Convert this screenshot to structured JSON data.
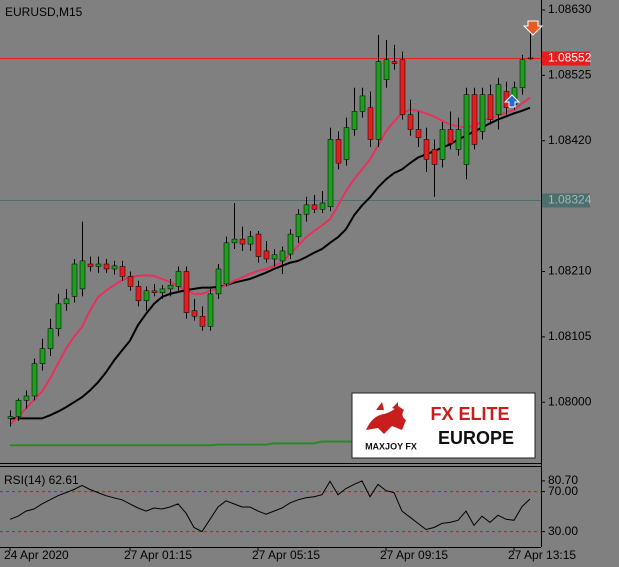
{
  "chart_data": [
    {
      "type": "candlestick",
      "title": "EURUSD,M15",
      "categories": [
        "24 Apr 2020",
        null,
        null,
        null,
        null,
        null,
        null,
        null,
        null,
        null,
        null,
        null,
        null,
        null,
        null,
        "27 Apr 01:15",
        null,
        null,
        null,
        null,
        null,
        null,
        null,
        null,
        null,
        null,
        null,
        null,
        null,
        null,
        null,
        "27 Apr 05:15",
        null,
        null,
        null,
        null,
        null,
        null,
        null,
        null,
        null,
        null,
        null,
        null,
        null,
        null,
        null,
        "27 Apr 09:15",
        null,
        null,
        null,
        null,
        null,
        null,
        null,
        null,
        null,
        null,
        null,
        null,
        null,
        null,
        null,
        "27 Apr 13:15",
        null,
        null
      ],
      "open": [
        1.07974,
        1.07977,
        1.08003,
        1.0801,
        1.08062,
        1.08086,
        1.08118,
        1.08158,
        1.0817,
        1.08182,
        1.08222,
        1.08218,
        1.08222,
        1.08214,
        1.08218,
        1.08202,
        1.08186,
        1.08163,
        1.08179,
        1.08176,
        1.08182,
        1.08186,
        1.0821,
        1.08147,
        1.08138,
        1.08122,
        1.08174,
        1.0819,
        1.08256,
        1.08262,
        1.08254,
        1.0827,
        1.08243,
        1.0823,
        1.08227,
        1.08238,
        1.08266,
        1.08302,
        1.08317,
        1.0831,
        1.08314,
        1.08422,
        1.0839,
        1.08438,
        1.08467,
        1.08473,
        1.08422,
        1.08518,
        1.08547,
        1.0855,
        1.08462,
        1.08438,
        1.08422,
        1.08406,
        1.0839,
        1.08438,
        1.08406,
        1.08382,
        1.08494,
        1.08435,
        1.08494,
        1.08462,
        1.08499,
        1.08478,
        1.08505,
        1.08553
      ],
      "high": [
        1.07987,
        1.08006,
        1.08019,
        1.0807,
        1.08102,
        1.08134,
        1.08174,
        1.08182,
        1.0823,
        1.0829,
        1.08234,
        1.08234,
        1.0823,
        1.08227,
        1.08227,
        1.0821,
        1.08195,
        1.08186,
        1.0819,
        1.08188,
        1.08198,
        1.08218,
        1.08218,
        1.08166,
        1.08154,
        1.08182,
        1.08222,
        1.08266,
        1.0832,
        1.08282,
        1.08275,
        1.08275,
        1.08259,
        1.08246,
        1.0825,
        1.08278,
        1.0831,
        1.0833,
        1.08333,
        1.08339,
        1.08441,
        1.08435,
        1.08457,
        1.08505,
        1.08505,
        1.08499,
        1.0859,
        1.08582,
        1.08574,
        1.08563,
        1.08486,
        1.08467,
        1.08441,
        1.08422,
        1.0845,
        1.08467,
        1.08457,
        1.08505,
        1.08505,
        1.08505,
        1.0851,
        1.08521,
        1.08515,
        1.08515,
        1.08558,
        1.08606
      ],
      "low": [
        1.07961,
        1.0797,
        1.0799,
        1.08003,
        1.08051,
        1.08074,
        1.08106,
        1.08147,
        1.0816,
        1.0817,
        1.0821,
        1.08208,
        1.08208,
        1.08205,
        1.08195,
        1.08179,
        1.08154,
        1.08147,
        1.0817,
        1.08166,
        1.0817,
        1.08179,
        1.08134,
        1.08131,
        1.08115,
        1.08115,
        1.08166,
        1.08186,
        1.08246,
        1.08243,
        1.08243,
        1.08224,
        1.08224,
        1.08218,
        1.08206,
        1.0823,
        1.08256,
        1.0829,
        1.08304,
        1.08304,
        1.08307,
        1.08374,
        1.0838,
        1.08428,
        1.08457,
        1.0841,
        1.0841,
        1.08505,
        1.08534,
        1.08454,
        1.08428,
        1.0841,
        1.0837,
        1.0833,
        1.08377,
        1.08406,
        1.08396,
        1.08358,
        1.08406,
        1.08422,
        1.08446,
        1.08438,
        1.08462,
        1.0847,
        1.08494,
        1.0855
      ],
      "close": [
        1.07977,
        1.08003,
        1.0801,
        1.08062,
        1.08086,
        1.08118,
        1.08158,
        1.08166,
        1.08222,
        1.08227,
        1.08218,
        1.08222,
        1.08214,
        1.08219,
        1.08202,
        1.08186,
        1.08163,
        1.08179,
        1.08176,
        1.08182,
        1.08188,
        1.0821,
        1.08144,
        1.08138,
        1.08122,
        1.08174,
        1.08214,
        1.08256,
        1.08262,
        1.08254,
        1.08266,
        1.08234,
        1.0823,
        1.08237,
        1.08243,
        1.0827,
        1.08302,
        1.08317,
        1.0831,
        1.0832,
        1.08422,
        1.08384,
        1.08441,
        1.08467,
        1.08492,
        1.08422,
        1.08547,
        1.0855,
        1.08544,
        1.08462,
        1.08438,
        1.08425,
        1.0839,
        1.08382,
        1.08438,
        1.08416,
        1.08438,
        1.08494,
        1.08414,
        1.08494,
        1.08454,
        1.0851,
        1.08473,
        1.08505,
        1.0855,
        1.08552
      ],
      "up_color": "#1e9e1e",
      "down_color": "#e41e1e",
      "series": [
        {
          "color": "#2a8a2a",
          "values": [
            1.07931,
            1.07931,
            1.07931,
            1.07931,
            1.07931,
            1.07931,
            1.07931,
            1.07931,
            1.07931,
            1.07931,
            1.07931,
            1.07931,
            1.07931,
            1.07931,
            1.07931,
            1.07931,
            1.07931,
            1.07931,
            1.07931,
            1.07931,
            1.07931,
            1.07931,
            1.07931,
            1.07931,
            1.07931,
            1.07931,
            1.07932,
            1.07932,
            1.07932,
            1.07932,
            1.07932,
            1.07932,
            1.07932,
            1.07934,
            1.07934,
            1.07934,
            1.07934,
            1.07934,
            1.07934,
            1.07937,
            1.07937,
            1.07937,
            1.07937,
            1.07937,
            1.07937,
            1.0794,
            1.0794,
            1.0794,
            1.0794,
            1.0794,
            1.0794,
            1.0794,
            1.0794,
            1.0794,
            1.0794,
            1.0794,
            1.0794,
            1.0794,
            1.0794,
            1.0794,
            1.0794,
            1.0794,
            1.0794,
            1.0794,
            1.0794,
            1.0794
          ]
        },
        {
          "color": "#000000",
          "values": [
            1.07974,
            1.07974,
            1.07974,
            1.07974,
            1.07974,
            1.07979,
            1.07985,
            1.07992,
            1.08,
            1.08008,
            1.08019,
            1.08032,
            1.08048,
            1.08067,
            1.08083,
            1.08099,
            1.08124,
            1.08142,
            1.08158,
            1.08169,
            1.08174,
            1.08177,
            1.0818,
            1.08182,
            1.08184,
            1.08184,
            1.08185,
            1.08188,
            1.08192,
            1.08195,
            1.08198,
            1.08203,
            1.08208,
            1.08214,
            1.08219,
            1.08224,
            1.08227,
            1.08233,
            1.0824,
            1.08246,
            1.08256,
            1.08265,
            1.08278,
            1.083,
            1.08316,
            1.08329,
            1.08345,
            1.08358,
            1.08368,
            1.08374,
            1.08384,
            1.08393,
            1.08398,
            1.08403,
            1.08409,
            1.08414,
            1.08422,
            1.08428,
            1.08435,
            1.08441,
            1.08448,
            1.08454,
            1.08459,
            1.08464,
            1.08468,
            1.08473
          ]
        },
        {
          "color": "#e8305c",
          "values": [
            1.07964,
            1.07976,
            1.0799,
            1.08004,
            1.08017,
            1.08038,
            1.08062,
            1.08086,
            1.08105,
            1.08121,
            1.08147,
            1.08169,
            1.08179,
            1.08188,
            1.08196,
            1.08201,
            1.08203,
            1.08204,
            1.08203,
            1.08198,
            1.08193,
            1.08187,
            1.0818,
            1.08174,
            1.08174,
            1.08179,
            1.08182,
            1.08188,
            1.08195,
            1.082,
            1.08206,
            1.08211,
            1.08214,
            1.08219,
            1.08225,
            1.08238,
            1.08251,
            1.08265,
            1.08275,
            1.08284,
            1.08294,
            1.08316,
            1.08339,
            1.08358,
            1.08374,
            1.0839,
            1.08412,
            1.08435,
            1.08451,
            1.08464,
            1.0847,
            1.08468,
            1.08464,
            1.08459,
            1.08452,
            1.08446,
            1.08443,
            1.08441,
            1.08444,
            1.08451,
            1.08457,
            1.0846,
            1.08465,
            1.0847,
            1.0848,
            1.08489
          ]
        }
      ],
      "hlines": [
        {
          "value": 1.08552,
          "color": "#e41e1e",
          "text_color": "#ffffff"
        },
        {
          "value": 1.08324,
          "color": "#4e6e6e",
          "text_color": "#9fb8b8"
        }
      ],
      "ylim": [
        1.07904,
        1.08646
      ],
      "yticks": [
        {
          "value": 1.0863,
          "label": "1.08630"
        },
        1.08525,
        {
          "value": 1.0842,
          "label": "1.08420"
        },
        {
          "value": 1.0821,
          "label": "1.08210"
        },
        1.08105,
        {
          "value": 1.08,
          "label": "1.08000"
        }
      ]
    },
    {
      "type": "line",
      "title": "RSI(14) 62.61",
      "color": "#000000",
      "values": [
        42.3,
        45.4,
        50.5,
        52.6,
        57.7,
        61.8,
        65.9,
        69.0,
        72.1,
        76.2,
        72.1,
        69.0,
        65.9,
        63.8,
        61.8,
        57.7,
        53.6,
        50.5,
        53.6,
        52.6,
        54.6,
        57.7,
        48.5,
        34.1,
        30.0,
        42.3,
        54.6,
        60.8,
        57.7,
        54.6,
        54.6,
        50.5,
        47.4,
        50.5,
        53.6,
        58.7,
        61.8,
        63.8,
        64.9,
        66.9,
        80.3,
        66.9,
        73.1,
        77.2,
        80.7,
        64.9,
        77.2,
        71.0,
        69.0,
        50.5,
        44.4,
        38.2,
        32.1,
        34.1,
        38.2,
        39.2,
        41.3,
        50.5,
        36.2,
        45.4,
        39.2,
        46.4,
        42.3,
        41.3,
        55.0,
        62.61
      ],
      "levels": [
        70,
        30
      ],
      "level_color": "#d01818",
      "ylim": [
        14.6,
        94.6
      ],
      "yticks": [
        {
          "value": 80.7,
          "label": "80.70"
        },
        {
          "value": 70,
          "label": "70.00"
        },
        {
          "value": 30,
          "label": "30.00"
        }
      ]
    }
  ],
  "logo": {
    "brand": "FX ELITE",
    "region": "EUROPE",
    "maker": "MAXJOY FX"
  }
}
